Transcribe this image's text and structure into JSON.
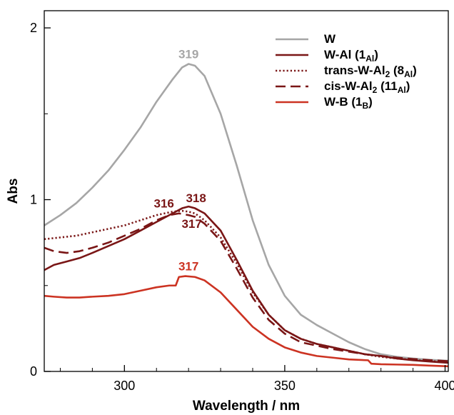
{
  "chart_data": {
    "type": "line",
    "xlabel": "Wavelength / nm",
    "ylabel": "Abs",
    "xlim": [
      275,
      401
    ],
    "ylim": [
      0,
      2.1
    ],
    "x_ticks": [
      300,
      350,
      400
    ],
    "y_ticks": [
      0,
      1,
      2
    ],
    "legend_position": "top-right",
    "grid": false,
    "series": [
      {
        "name": "W",
        "label_main": "W",
        "label_sub": "",
        "color": "#a6a6a6",
        "dash": "solid",
        "points": [
          [
            275,
            0.85
          ],
          [
            280,
            0.91
          ],
          [
            285,
            0.98
          ],
          [
            290,
            1.07
          ],
          [
            295,
            1.17
          ],
          [
            300,
            1.29
          ],
          [
            305,
            1.42
          ],
          [
            310,
            1.57
          ],
          [
            315,
            1.7
          ],
          [
            318,
            1.77
          ],
          [
            320,
            1.79
          ],
          [
            322,
            1.78
          ],
          [
            325,
            1.72
          ],
          [
            330,
            1.5
          ],
          [
            335,
            1.2
          ],
          [
            340,
            0.88
          ],
          [
            345,
            0.62
          ],
          [
            350,
            0.44
          ],
          [
            355,
            0.33
          ],
          [
            360,
            0.27
          ],
          [
            365,
            0.22
          ],
          [
            370,
            0.17
          ],
          [
            375,
            0.13
          ],
          [
            380,
            0.1
          ],
          [
            385,
            0.085
          ],
          [
            390,
            0.075
          ],
          [
            395,
            0.068
          ],
          [
            401,
            0.062
          ]
        ]
      },
      {
        "name": "W-Al (1Al)",
        "label_main": "W-Al (1",
        "label_sub": "Al",
        "color": "#7a1616",
        "dash": "solid",
        "points": [
          [
            275,
            0.59
          ],
          [
            278,
            0.62
          ],
          [
            282,
            0.64
          ],
          [
            286,
            0.66
          ],
          [
            290,
            0.69
          ],
          [
            295,
            0.73
          ],
          [
            300,
            0.77
          ],
          [
            305,
            0.82
          ],
          [
            310,
            0.87
          ],
          [
            315,
            0.92
          ],
          [
            318,
            0.95
          ],
          [
            320,
            0.96
          ],
          [
            322,
            0.95
          ],
          [
            325,
            0.92
          ],
          [
            330,
            0.82
          ],
          [
            335,
            0.65
          ],
          [
            340,
            0.47
          ],
          [
            345,
            0.33
          ],
          [
            350,
            0.24
          ],
          [
            355,
            0.19
          ],
          [
            360,
            0.16
          ],
          [
            365,
            0.14
          ],
          [
            370,
            0.12
          ],
          [
            375,
            0.1
          ],
          [
            380,
            0.09
          ],
          [
            385,
            0.075
          ],
          [
            390,
            0.065
          ],
          [
            395,
            0.058
          ],
          [
            401,
            0.05
          ]
        ]
      },
      {
        "name": "trans-W-Al2 (8Al)",
        "label_main": "trans-W-Al",
        "label_sub2": "2",
        "label_mid": " (8",
        "label_sub": "Al",
        "color": "#7a1616",
        "dash": "dotted",
        "points": [
          [
            275,
            0.77
          ],
          [
            280,
            0.78
          ],
          [
            285,
            0.79
          ],
          [
            290,
            0.81
          ],
          [
            295,
            0.83
          ],
          [
            300,
            0.85
          ],
          [
            305,
            0.88
          ],
          [
            310,
            0.91
          ],
          [
            315,
            0.93
          ],
          [
            318,
            0.935
          ],
          [
            320,
            0.93
          ],
          [
            322,
            0.92
          ],
          [
            325,
            0.88
          ],
          [
            330,
            0.78
          ],
          [
            335,
            0.63
          ],
          [
            340,
            0.46
          ],
          [
            345,
            0.33
          ],
          [
            350,
            0.24
          ],
          [
            355,
            0.19
          ],
          [
            360,
            0.16
          ],
          [
            365,
            0.14
          ],
          [
            370,
            0.12
          ],
          [
            375,
            0.1
          ],
          [
            380,
            0.085
          ],
          [
            385,
            0.075
          ],
          [
            390,
            0.067
          ],
          [
            395,
            0.06
          ],
          [
            401,
            0.055
          ]
        ]
      },
      {
        "name": "cis-W-Al2 (11Al)",
        "label_main": "cis-W-Al",
        "label_sub2": "2",
        "label_mid": " (11",
        "label_sub": "Al",
        "color": "#7a1616",
        "dash": "dashed",
        "points": [
          [
            275,
            0.72
          ],
          [
            278,
            0.7
          ],
          [
            282,
            0.69
          ],
          [
            286,
            0.7
          ],
          [
            290,
            0.72
          ],
          [
            295,
            0.75
          ],
          [
            300,
            0.79
          ],
          [
            305,
            0.83
          ],
          [
            310,
            0.88
          ],
          [
            314,
            0.91
          ],
          [
            317,
            0.92
          ],
          [
            320,
            0.91
          ],
          [
            322,
            0.9
          ],
          [
            325,
            0.86
          ],
          [
            330,
            0.76
          ],
          [
            335,
            0.6
          ],
          [
            340,
            0.43
          ],
          [
            345,
            0.3
          ],
          [
            350,
            0.22
          ],
          [
            355,
            0.17
          ],
          [
            360,
            0.15
          ],
          [
            365,
            0.13
          ],
          [
            370,
            0.115
          ],
          [
            375,
            0.1
          ],
          [
            380,
            0.09
          ],
          [
            385,
            0.08
          ],
          [
            390,
            0.072
          ],
          [
            395,
            0.066
          ],
          [
            401,
            0.06
          ]
        ]
      },
      {
        "name": "W-B (1B)",
        "label_main": "W-B (1",
        "label_sub": "B",
        "color": "#cc3322",
        "dash": "solid",
        "points": [
          [
            275,
            0.44
          ],
          [
            278,
            0.435
          ],
          [
            282,
            0.43
          ],
          [
            286,
            0.43
          ],
          [
            290,
            0.435
          ],
          [
            295,
            0.44
          ],
          [
            300,
            0.45
          ],
          [
            305,
            0.47
          ],
          [
            310,
            0.49
          ],
          [
            314,
            0.5
          ],
          [
            316,
            0.5
          ],
          [
            317,
            0.55
          ],
          [
            319,
            0.555
          ],
          [
            322,
            0.55
          ],
          [
            325,
            0.53
          ],
          [
            330,
            0.46
          ],
          [
            335,
            0.36
          ],
          [
            340,
            0.26
          ],
          [
            345,
            0.19
          ],
          [
            350,
            0.14
          ],
          [
            355,
            0.11
          ],
          [
            360,
            0.09
          ],
          [
            365,
            0.08
          ],
          [
            370,
            0.07
          ],
          [
            376,
            0.065
          ],
          [
            377,
            0.045
          ],
          [
            380,
            0.042
          ],
          [
            385,
            0.04
          ],
          [
            390,
            0.038
          ],
          [
            395,
            0.034
          ],
          [
            401,
            0.03
          ]
        ]
      }
    ],
    "peak_annotations": [
      {
        "text": "319",
        "x": 320,
        "y": 1.79,
        "color": "#a6a6a6"
      },
      {
        "text": "318",
        "x": 321,
        "y": 0.96,
        "color": "#7a1616"
      },
      {
        "text": "316",
        "x": 315,
        "y": 0.93,
        "color": "#7a1616"
      },
      {
        "text": "317",
        "x": 321,
        "y": 0.92,
        "color": "#7a1616"
      },
      {
        "text": "317",
        "x": 320,
        "y": 0.555,
        "color": "#cc3322"
      }
    ]
  }
}
